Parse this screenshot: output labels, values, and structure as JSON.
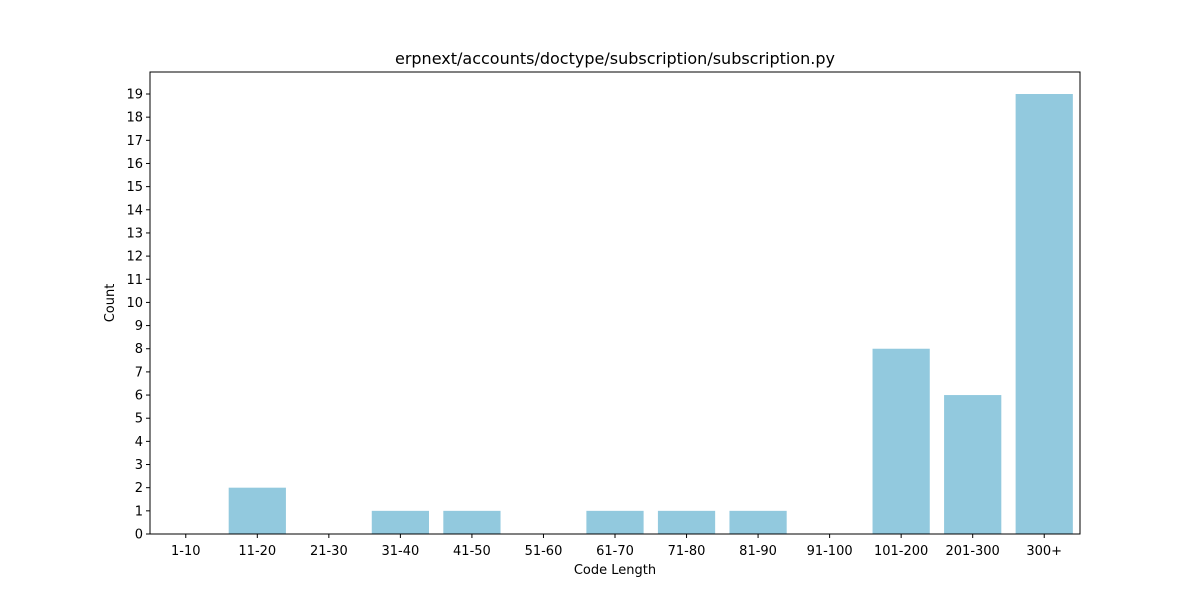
{
  "chart_data": {
    "type": "bar",
    "title": "erpnext/accounts/doctype/subscription/subscription.py",
    "xlabel": "Code Length",
    "ylabel": "Count",
    "categories": [
      "1-10",
      "11-20",
      "21-30",
      "31-40",
      "41-50",
      "51-60",
      "61-70",
      "71-80",
      "81-90",
      "91-100",
      "101-200",
      "201-300",
      "300+"
    ],
    "values": [
      0,
      2,
      0,
      1,
      1,
      0,
      1,
      1,
      1,
      0,
      8,
      6,
      19
    ],
    "ylim": [
      0,
      19.95
    ],
    "yticks": [
      0,
      1,
      2,
      3,
      4,
      5,
      6,
      7,
      8,
      9,
      10,
      11,
      12,
      13,
      14,
      15,
      16,
      17,
      18,
      19
    ],
    "grid": false,
    "bar_color": "#92c9de"
  }
}
